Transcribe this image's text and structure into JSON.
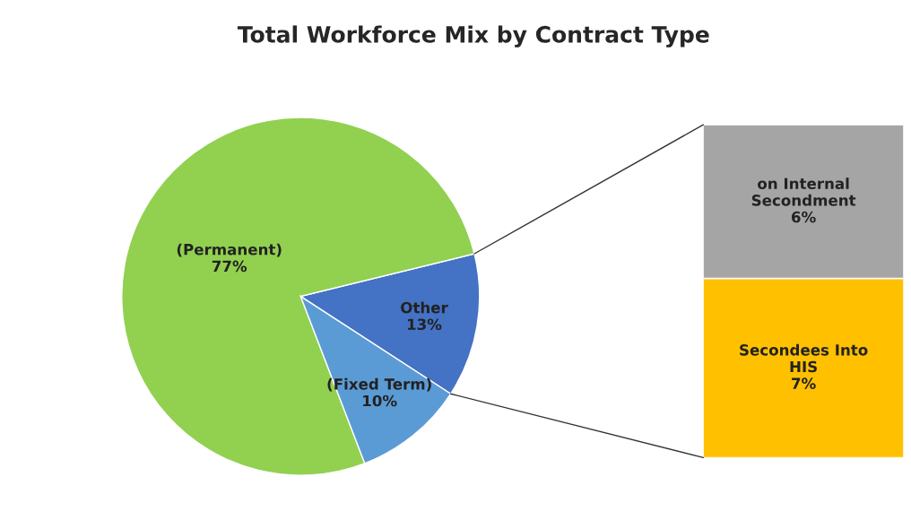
{
  "chart_data": [
    {
      "type": "pie",
      "title": "Total Workforce Mix by Contract Type",
      "categories": [
        "Other",
        "(Permanent)",
        "(Fixed Term)"
      ],
      "values": [
        13,
        77,
        10
      ],
      "colors": [
        "#4472c4",
        "#92d050",
        "#5b9bd5"
      ],
      "value_labels": [
        "13%",
        "77%",
        "10%"
      ],
      "legend": false
    },
    {
      "type": "bar",
      "stacked": true,
      "categories": [
        null
      ],
      "tick_labels": false,
      "legend": false,
      "series": [
        {
          "name": "Secondees Into HIS",
          "color": "#ffc000",
          "values": [
            7
          ],
          "value_labels": [
            "7%"
          ]
        },
        {
          "name": "on Internal Secondment",
          "color": "#a5a5a5",
          "values": [
            6
          ],
          "value_labels": [
            "6%"
          ]
        }
      ]
    }
  ]
}
